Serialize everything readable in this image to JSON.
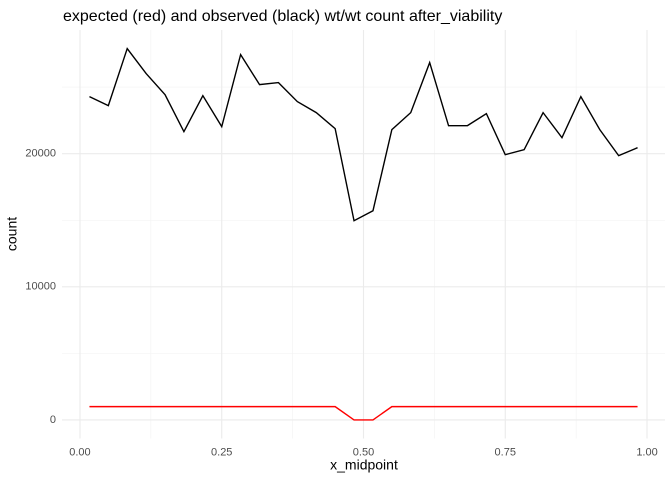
{
  "chart_data": {
    "type": "line",
    "title": "expected (red) and observed (black) wt/wt count after_viability",
    "x_label": "x_midpoint",
    "y_label": "count",
    "x": [
      0.0167,
      0.05,
      0.0833,
      0.1167,
      0.15,
      0.1833,
      0.2167,
      0.25,
      0.2833,
      0.3167,
      0.35,
      0.3833,
      0.4167,
      0.45,
      0.4833,
      0.5167,
      0.55,
      0.5833,
      0.6167,
      0.65,
      0.6833,
      0.7167,
      0.75,
      0.7833,
      0.8167,
      0.85,
      0.8833,
      0.9167,
      0.95,
      0.9833
    ],
    "series": [
      {
        "color": "#000000",
        "values": [
          24286,
          23609,
          27895,
          26015,
          24436,
          21654,
          24361,
          22030,
          27444,
          25188,
          25338,
          23910,
          23083,
          21880,
          14962,
          15714,
          21805,
          23083,
          26842,
          22105,
          22105,
          23008,
          19925,
          20301,
          23083,
          21203,
          24286,
          21805,
          19850,
          20451
        ]
      },
      {
        "color": "#ff0000",
        "values": [
          1000,
          1000,
          1000,
          1000,
          1000,
          1000,
          1000,
          1000,
          1000,
          1000,
          1000,
          1000,
          1000,
          1000,
          0,
          0,
          1000,
          1000,
          1000,
          1000,
          1000,
          1000,
          1000,
          1000,
          1000,
          1000,
          1000,
          1000,
          1000,
          1000
        ]
      }
    ],
    "xlim": [
      -0.0317,
      1.0317
    ],
    "ylim": [
      -1395,
      29290
    ],
    "xticks": [
      {
        "value": 0,
        "label": "0.00"
      },
      {
        "value": 0.25,
        "label": "0.25"
      },
      {
        "value": 0.5,
        "label": "0.50"
      },
      {
        "value": 0.75,
        "label": "0.75"
      },
      {
        "value": 1,
        "label": "1.00"
      }
    ],
    "yticks": [
      0,
      10000,
      20000
    ],
    "x_minor_grid": [
      0.125,
      0.375,
      0.625,
      0.875
    ],
    "y_minor_grid": [
      5000,
      15000,
      25000
    ],
    "grid": true
  }
}
